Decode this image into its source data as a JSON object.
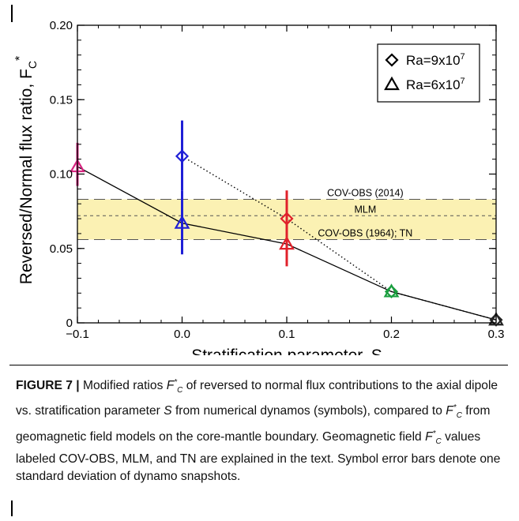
{
  "chart_data": {
    "type": "scatter",
    "xlabel": "Stratification parameter, S",
    "ylabel_main": "Reversed/Normal flux ratio,  F",
    "ylabel_sub": "C",
    "ylabel_sup": "*",
    "xlim": [
      -0.1,
      0.3
    ],
    "ylim": [
      0,
      0.2
    ],
    "x_ticks": [
      -0.1,
      0.0,
      0.1,
      0.2,
      0.3
    ],
    "x_tick_labels": [
      "−0.1",
      "0.0",
      "0.1",
      "0.2",
      "0.3"
    ],
    "y_ticks": [
      0,
      0.05,
      0.1,
      0.15,
      0.2
    ],
    "y_tick_labels": [
      "0",
      "0.05",
      "0.10",
      "0.15",
      "0.20"
    ],
    "grid": false,
    "legend_position": "top-right",
    "legend": [
      {
        "marker": "diamond",
        "label_base": "Ra=9x10",
        "label_exp": "7"
      },
      {
        "marker": "triangle",
        "label_base": "Ra=6x10",
        "label_exp": "7"
      }
    ],
    "band": {
      "ymin": 0.056,
      "ymax": 0.083,
      "color": "#fbf1b3"
    },
    "reference_lines": [
      {
        "y": 0.083,
        "style": "long-dash",
        "label": "COV-OBS (2014)"
      },
      {
        "y": 0.072,
        "style": "short-dash",
        "label": "MLM"
      },
      {
        "y": 0.056,
        "style": "long-dash",
        "label": "COV-OBS (1964); TN"
      }
    ],
    "series": [
      {
        "marker": "diamond",
        "line_style": "dotted",
        "points": [
          {
            "x": 0.0,
            "y": 0.112,
            "err_low": 0.089,
            "err_high": 0.136,
            "color": "#1f1fd6"
          },
          {
            "x": 0.1,
            "y": 0.07,
            "err_low": null,
            "err_high": null,
            "color": "#e0212b"
          },
          {
            "x": 0.2,
            "y": 0.021,
            "err_low": null,
            "err_high": null,
            "color": "#1a9e3f"
          },
          {
            "x": 0.3,
            "y": 0.002,
            "err_low": null,
            "err_high": null,
            "color": "#222222"
          }
        ]
      },
      {
        "marker": "triangle",
        "line_style": "solid",
        "points": [
          {
            "x": -0.1,
            "y": 0.105,
            "err_low": 0.092,
            "err_high": 0.121,
            "color": "#d6237f"
          },
          {
            "x": 0.0,
            "y": 0.067,
            "err_low": 0.046,
            "err_high": 0.089,
            "color": "#1f1fd6"
          },
          {
            "x": 0.1,
            "y": 0.053,
            "err_low": 0.038,
            "err_high": 0.089,
            "color": "#e0212b"
          },
          {
            "x": 0.2,
            "y": 0.021,
            "err_low": null,
            "err_high": null,
            "color": "#1a9e3f"
          },
          {
            "x": 0.3,
            "y": 0.002,
            "err_low": null,
            "err_high": null,
            "color": "#222222"
          }
        ]
      }
    ]
  },
  "caption": {
    "label": "FIGURE 7 |",
    "t1": " Modified ratios ",
    "fc_base": "F",
    "fc_sup": "*",
    "fc_sub": "C",
    "t2": " of reversed to normal flux contributions to the axial dipole vs. stratification parameter ",
    "s_symbol": "S",
    "t3": " from numerical dynamos (symbols), compared to ",
    "t4": " from geomagnetic field models on the core-mantle boundary. Geomagnetic field ",
    "t5": " values labeled COV-OBS, MLM, and TN are explained in the text. Symbol error bars denote one standard deviation of dynamo snapshots."
  }
}
